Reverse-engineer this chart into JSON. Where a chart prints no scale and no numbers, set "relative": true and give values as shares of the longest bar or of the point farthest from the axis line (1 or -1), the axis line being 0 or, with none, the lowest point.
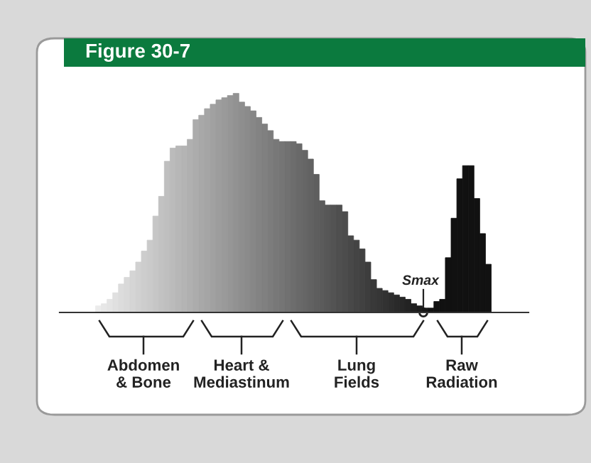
{
  "chart_data": {
    "type": "bar",
    "title": "Figure 30-7",
    "relative": true,
    "categories": [
      null,
      null,
      null,
      null,
      null,
      null,
      null,
      null,
      null,
      null,
      null,
      null,
      null,
      null,
      null,
      null,
      null,
      null,
      null,
      null,
      null,
      null,
      null,
      null,
      null,
      null,
      null,
      null,
      null,
      null,
      null,
      null,
      null,
      null,
      null,
      null,
      null,
      null,
      null,
      null,
      null,
      null,
      null,
      null,
      null,
      null,
      null,
      null,
      null,
      null,
      null,
      null,
      null,
      null,
      null,
      null,
      null,
      null,
      null,
      null,
      null,
      null,
      null,
      null,
      null,
      null,
      null,
      null,
      null
    ],
    "values": [
      0.03,
      0.04,
      0.06,
      0.09,
      0.13,
      0.16,
      0.19,
      0.23,
      0.28,
      0.33,
      0.44,
      0.53,
      0.69,
      0.75,
      0.76,
      0.76,
      0.79,
      0.88,
      0.9,
      0.93,
      0.95,
      0.97,
      0.98,
      0.99,
      1.0,
      0.96,
      0.94,
      0.92,
      0.89,
      0.86,
      0.83,
      0.79,
      0.78,
      0.78,
      0.78,
      0.77,
      0.74,
      0.7,
      0.63,
      0.51,
      0.49,
      0.49,
      0.49,
      0.46,
      0.35,
      0.33,
      0.29,
      0.23,
      0.15,
      0.11,
      0.1,
      0.09,
      0.08,
      0.07,
      0.06,
      0.04,
      0.03,
      0.02,
      0.02,
      0.05,
      0.06,
      0.25,
      0.43,
      0.61,
      0.67,
      0.67,
      0.52,
      0.36,
      0.22
    ],
    "colors": [
      "#ebebeb",
      "#e7e7e7",
      "#e4e4e4",
      "#e0e0e0",
      "#dcdcdc",
      "#d9d9d9",
      "#d5d5d5",
      "#d1d1d1",
      "#cdcdcd",
      "#cacaca",
      "#c6c6c6",
      "#c2c2c2",
      "#bfbfbf",
      "#bbbbbb",
      "#b7b7b7",
      "#b4b4b4",
      "#b0b0b0",
      "#acacac",
      "#a8a8a8",
      "#a5a5a5",
      "#a1a1a1",
      "#9d9d9d",
      "#9a9a9a",
      "#969696",
      "#929292",
      "#8e8e8e",
      "#8b8b8b",
      "#878787",
      "#838383",
      "#808080",
      "#7c7c7c",
      "#787878",
      "#757575",
      "#717171",
      "#6d6d6d",
      "#696969",
      "#666666",
      "#626262",
      "#5e5e5e",
      "#5b5b5b",
      "#575757",
      "#535353",
      "#4f4f4f",
      "#4c4c4c",
      "#484848",
      "#444444",
      "#414141",
      "#3d3d3d",
      "#393939",
      "#363636",
      "#323232",
      "#2e2e2e",
      "#2a2a2a",
      "#272727",
      "#232323",
      "#1f1f1f",
      "#1c1c1c",
      "#181818",
      "#111111",
      "#111111",
      "#111111",
      "#111111",
      "#111111",
      "#111111",
      "#111111",
      "#111111",
      "#111111",
      "#111111",
      "#111111"
    ],
    "annotations": [
      "Abdomen\n& Bone",
      "Heart &\nMediastinum",
      "Lung\nFields",
      "Raw\nRadiation",
      "Smax"
    ]
  }
}
